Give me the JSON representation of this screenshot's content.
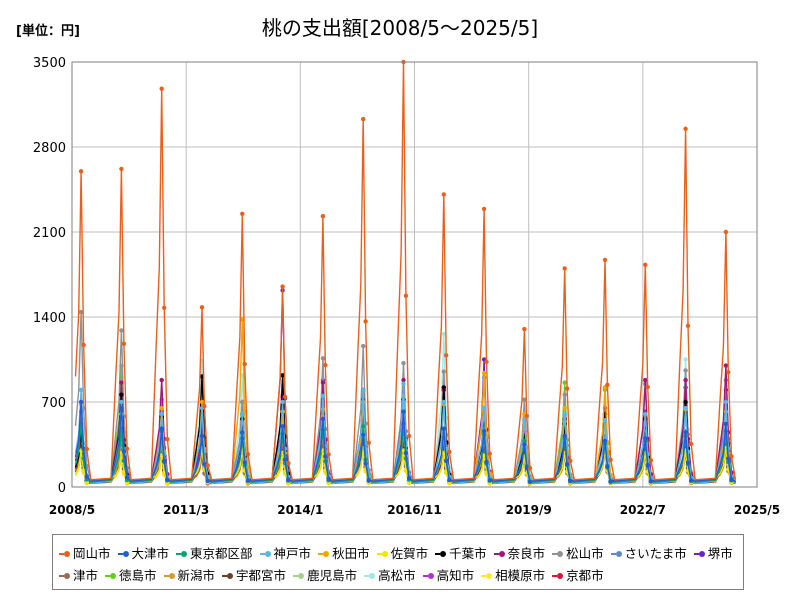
{
  "header": {
    "title": "桃の支出額[2008/5～2025/5]",
    "unit": "[単位：円]"
  },
  "chart_data": {
    "type": "line",
    "title": "桃の支出額[2008/5～2025/5]",
    "ylabel": "[単位：円]",
    "ylim": [
      0,
      3500
    ],
    "yticks": [
      "0",
      "700",
      "1400",
      "2100",
      "2800",
      "3500"
    ],
    "xlim": [
      2008.333,
      2025.333
    ],
    "xticks": [
      {
        "label": "2008/5",
        "value": 2008.333
      },
      {
        "label": "2011/3",
        "value": 2011.167
      },
      {
        "label": "2014/1",
        "value": 2014.0
      },
      {
        "label": "2016/11",
        "value": 2016.833
      },
      {
        "label": "2019/9",
        "value": 2019.667
      },
      {
        "label": "2022/7",
        "value": 2022.5
      },
      {
        "label": "2025/5",
        "value": 2025.333
      }
    ],
    "grid": true,
    "legend_position": "bottom",
    "series": [
      {
        "name": "岡山市",
        "color": "#e8601c",
        "peaks": [
          2600,
          2620,
          3280,
          1480,
          2250,
          1650,
          2230,
          3030,
          3500,
          2410,
          2290,
          1300,
          1800,
          1870,
          1830,
          2950,
          2100
        ]
      },
      {
        "name": "大津市",
        "color": "#1f5fd6",
        "peaks": [
          700,
          650,
          480,
          420,
          450,
          500,
          560,
          430,
          620,
          480,
          460,
          350,
          420,
          380,
          400,
          450,
          520
        ]
      },
      {
        "name": "東京都区部",
        "color": "#0aa36f",
        "peaks": [
          520,
          480,
          460,
          420,
          400,
          440,
          470,
          500,
          520,
          480,
          430,
          380,
          400,
          360,
          380,
          420,
          460
        ]
      },
      {
        "name": "神戸市",
        "color": "#58b7e8",
        "peaks": [
          800,
          700,
          600,
          650,
          600,
          700,
          750,
          800,
          850,
          700,
          650,
          550,
          600,
          550,
          600,
          650,
          700
        ]
      },
      {
        "name": "秋田市",
        "color": "#f5a300",
        "peaks": [
          680,
          600,
          650,
          700,
          1380,
          620,
          640,
          700,
          750,
          680,
          940,
          600,
          650,
          820,
          600,
          640,
          620
        ]
      },
      {
        "name": "佐賀市",
        "color": "#f2e600",
        "peaks": [
          300,
          280,
          260,
          320,
          300,
          280,
          300,
          320,
          300,
          280,
          260,
          250,
          280,
          300,
          280,
          300,
          320
        ]
      },
      {
        "name": "千葉市",
        "color": "#000000",
        "peaks": [
          460,
          760,
          580,
          910,
          560,
          920,
          600,
          800,
          720,
          820,
          600,
          420,
          520,
          600,
          560,
          700,
          620
        ]
      },
      {
        "name": "奈良市",
        "color": "#a0167a",
        "peaks": [
          420,
          860,
          880,
          560,
          600,
          740,
          860,
          720,
          880,
          800,
          650,
          460,
          560,
          650,
          880,
          880,
          1000
        ]
      },
      {
        "name": "松山市",
        "color": "#8f9196",
        "peaks": [
          1440,
          1290,
          720,
          680,
          700,
          760,
          1060,
          1160,
          1020,
          950,
          900,
          720,
          760,
          800,
          850,
          960,
          880
        ]
      },
      {
        "name": "さいたま市",
        "color": "#5a8bc7",
        "peaks": [
          480,
          440,
          420,
          400,
          420,
          440,
          460,
          480,
          500,
          460,
          440,
          420,
          440,
          420,
          440,
          460,
          480
        ]
      },
      {
        "name": "堺市",
        "color": "#6a22d0",
        "peaks": [
          620,
          560,
          520,
          480,
          700,
          1620,
          880,
          620,
          700,
          800,
          1050,
          480,
          560,
          600,
          620,
          820,
          800
        ]
      },
      {
        "name": "津市",
        "color": "#9c6b52",
        "peaks": [
          300,
          280,
          260,
          250,
          260,
          280,
          300,
          320,
          300,
          280,
          260,
          240,
          260,
          280,
          260,
          280,
          300
        ]
      },
      {
        "name": "徳島市",
        "color": "#66cc22",
        "peaks": [
          560,
          1000,
          560,
          640,
          600,
          660,
          620,
          600,
          640,
          660,
          620,
          600,
          860,
          580,
          600,
          620,
          640
        ]
      },
      {
        "name": "新潟市",
        "color": "#d19a2e",
        "peaks": [
          400,
          380,
          360,
          420,
          380,
          400,
          420,
          440,
          460,
          420,
          400,
          380,
          400,
          380,
          400,
          420,
          440
        ]
      },
      {
        "name": "宇都宮市",
        "color": "#6b3e26",
        "peaks": [
          350,
          330,
          300,
          320,
          300,
          320,
          340,
          360,
          380,
          340,
          320,
          300,
          320,
          300,
          320,
          340,
          360
        ]
      },
      {
        "name": "鹿児島市",
        "color": "#a7cf8e",
        "peaks": [
          380,
          360,
          340,
          360,
          340,
          360,
          380,
          400,
          420,
          380,
          360,
          340,
          360,
          340,
          360,
          380,
          400
        ]
      },
      {
        "name": "高松市",
        "color": "#9fe8e8",
        "peaks": [
          600,
          560,
          520,
          1040,
          920,
          560,
          600,
          650,
          700,
          1260,
          600,
          560,
          600,
          560,
          600,
          1050,
          700
        ]
      },
      {
        "name": "高知市",
        "color": "#b42ed6",
        "peaks": [
          420,
          400,
          380,
          400,
          380,
          400,
          420,
          440,
          460,
          420,
          400,
          380,
          400,
          380,
          400,
          420,
          440
        ]
      },
      {
        "name": "相模原市",
        "color": "#ffe833",
        "peaks": [
          260,
          240,
          220,
          240,
          220,
          240,
          260,
          280,
          300,
          260,
          240,
          220,
          240,
          820,
          240,
          260,
          280
        ]
      },
      {
        "name": "京都市",
        "color": "#d8163a",
        "peaks": [
          380,
          360,
          340,
          360,
          340,
          360,
          380,
          400,
          420,
          380,
          360,
          340,
          360,
          340,
          360,
          380,
          400
        ]
      }
    ]
  }
}
